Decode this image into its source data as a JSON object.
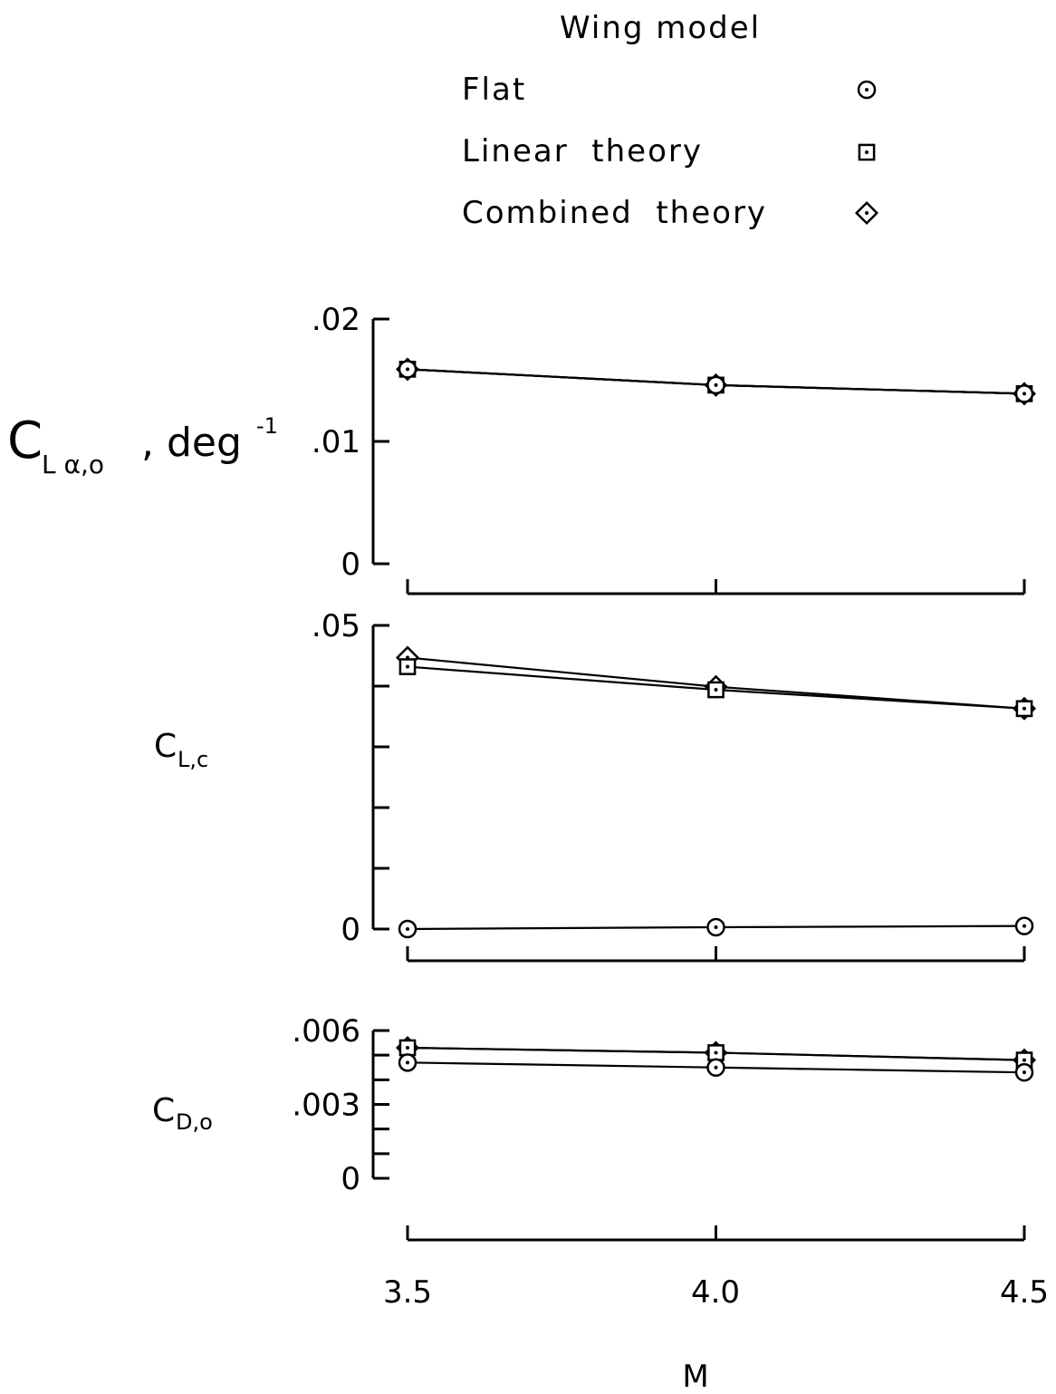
{
  "legend": {
    "title": "Wing model",
    "items": [
      {
        "label": "Flat",
        "marker": "circle-dot"
      },
      {
        "label": "Linear  theory",
        "marker": "square-dot"
      },
      {
        "label": "Combined  theory",
        "marker": "diamond-dot"
      }
    ]
  },
  "chart_data": [
    {
      "type": "line",
      "ylabel_main": "C",
      "ylabel_sub": "L α,o",
      "ylabel_suffix": ", deg",
      "ylabel_sup": "-1",
      "x": [
        3.5,
        4.0,
        4.5
      ],
      "xlim": [
        3.5,
        4.5
      ],
      "ylim": [
        0,
        0.02
      ],
      "ytick_labels": [
        "0",
        ".01",
        ".02"
      ],
      "ytick_values": [
        0,
        0.01,
        0.02
      ],
      "series": [
        {
          "name": "Flat",
          "values": [
            0.0159,
            0.0146,
            0.0139
          ]
        },
        {
          "name": "Linear  theory",
          "values": [
            0.0159,
            0.0146,
            0.0139
          ]
        },
        {
          "name": "Combined  theory",
          "values": [
            0.0159,
            0.0146,
            0.0139
          ]
        }
      ]
    },
    {
      "type": "line",
      "ylabel_main": "C",
      "ylabel_sub": "L,c",
      "x": [
        3.5,
        4.0,
        4.5
      ],
      "xlim": [
        3.5,
        4.5
      ],
      "ylim": [
        0,
        0.05
      ],
      "ytick_labels": [
        "0",
        ".05"
      ],
      "ytick_values": [
        0,
        0.05
      ],
      "minor_ticks": [
        0.01,
        0.02,
        0.03,
        0.04
      ],
      "series": [
        {
          "name": "Flat",
          "values": [
            0.0,
            0.0003,
            0.0005
          ]
        },
        {
          "name": "Linear  theory",
          "values": [
            0.0432,
            0.0394,
            0.0363
          ]
        },
        {
          "name": "Combined  theory",
          "values": [
            0.0447,
            0.0399,
            0.0363
          ]
        }
      ]
    },
    {
      "type": "line",
      "ylabel_main": "C",
      "ylabel_sub": "D,o",
      "x": [
        3.5,
        4.0,
        4.5
      ],
      "xlim": [
        3.5,
        4.5
      ],
      "ylim": [
        0,
        0.006
      ],
      "ytick_labels": [
        "0",
        ".003",
        ".006"
      ],
      "ytick_values": [
        0,
        0.003,
        0.006
      ],
      "minor_ticks": [
        0.001,
        0.002,
        0.004,
        0.005
      ],
      "series": [
        {
          "name": "Flat",
          "values": [
            0.0047,
            0.0045,
            0.0043
          ]
        },
        {
          "name": "Linear  theory",
          "values": [
            0.0053,
            0.0051,
            0.0048
          ]
        },
        {
          "name": "Combined  theory",
          "values": [
            0.0053,
            0.0051,
            0.0048
          ]
        }
      ]
    }
  ],
  "x_axis": {
    "tick_labels": [
      "3.5",
      "4.0",
      "4.5"
    ],
    "tick_values": [
      3.5,
      4.0,
      4.5
    ],
    "label": "M"
  }
}
